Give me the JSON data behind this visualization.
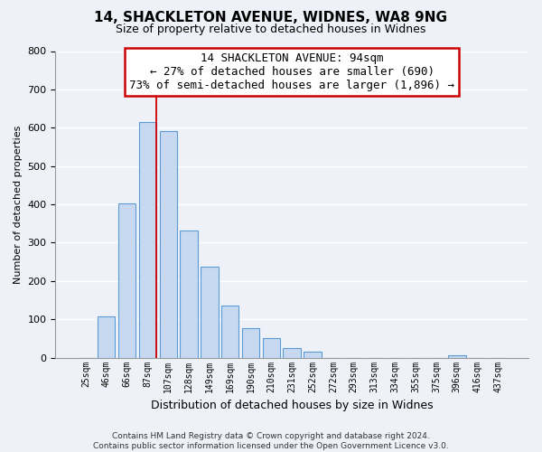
{
  "title1": "14, SHACKLETON AVENUE, WIDNES, WA8 9NG",
  "title2": "Size of property relative to detached houses in Widnes",
  "xlabel": "Distribution of detached houses by size in Widnes",
  "ylabel": "Number of detached properties",
  "categories": [
    "25sqm",
    "46sqm",
    "66sqm",
    "87sqm",
    "107sqm",
    "128sqm",
    "149sqm",
    "169sqm",
    "190sqm",
    "210sqm",
    "231sqm",
    "252sqm",
    "272sqm",
    "293sqm",
    "313sqm",
    "334sqm",
    "355sqm",
    "375sqm",
    "396sqm",
    "416sqm",
    "437sqm"
  ],
  "values": [
    0,
    107,
    403,
    616,
    591,
    332,
    237,
    136,
    76,
    50,
    25,
    15,
    0,
    0,
    0,
    0,
    0,
    0,
    7,
    0,
    0
  ],
  "bar_color": "#c6d9f0",
  "bar_edge_color": "#5b9bd5",
  "highlight_bar_index": 3,
  "highlight_line_color": "#cc0000",
  "annotation_line1": "14 SHACKLETON AVENUE: 94sqm",
  "annotation_line2": "← 27% of detached houses are smaller (690)",
  "annotation_line3": "73% of semi-detached houses are larger (1,896) →",
  "annotation_box_color": "#ffffff",
  "annotation_border_color": "#cc0000",
  "ylim": [
    0,
    800
  ],
  "yticks": [
    0,
    100,
    200,
    300,
    400,
    500,
    600,
    700,
    800
  ],
  "footer1": "Contains HM Land Registry data © Crown copyright and database right 2024.",
  "footer2": "Contains public sector information licensed under the Open Government Licence v3.0.",
  "bg_color": "#eef2f8",
  "grid_color": "#ffffff",
  "title_fontsize": 11,
  "subtitle_fontsize": 9,
  "ylabel_fontsize": 8,
  "xlabel_fontsize": 9,
  "tick_fontsize": 8,
  "xtick_fontsize": 7,
  "footer_fontsize": 6.5,
  "ann_fontsize": 9
}
